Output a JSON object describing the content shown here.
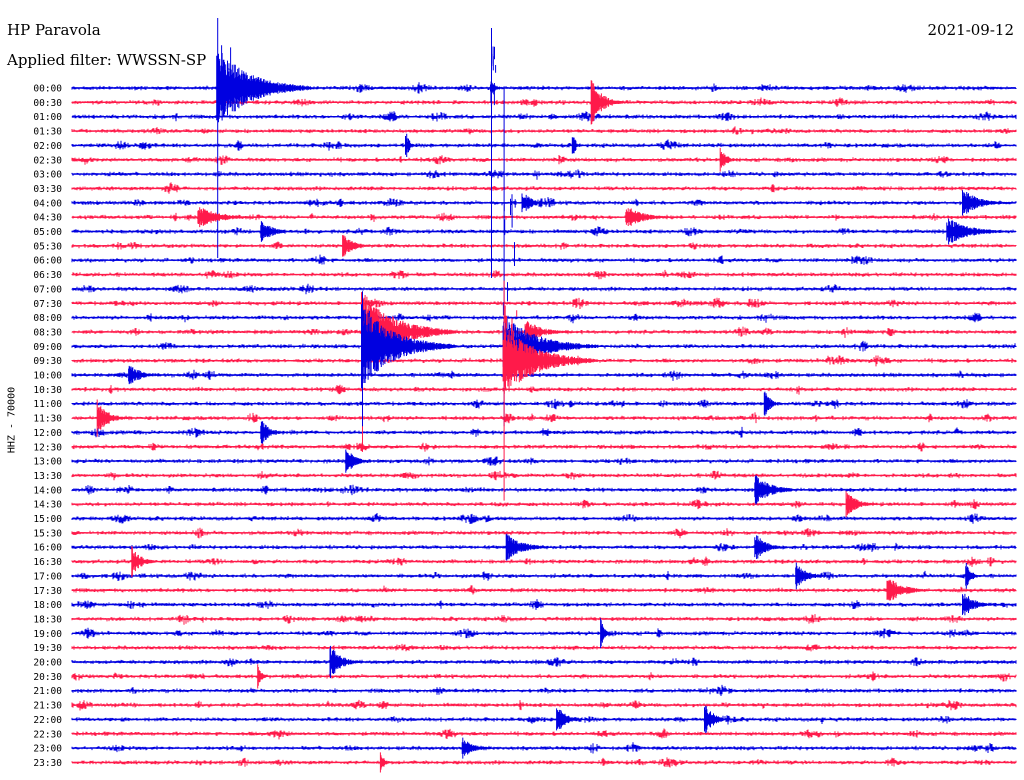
{
  "header": {
    "station": "HP Paravola",
    "date": "2021-09-12",
    "filter": "Applied filter: WWSSN-SP",
    "channel": "HHZ - 70000"
  },
  "chart_data": {
    "type": "line",
    "title": "HP Paravola",
    "subtitle": "Applied filter: WWSSN-SP",
    "ylabel": "HHZ - 70000",
    "row_labels": [
      "00:00",
      "00:30",
      "01:00",
      "01:30",
      "02:00",
      "02:30",
      "03:00",
      "03:30",
      "04:00",
      "04:30",
      "05:00",
      "05:30",
      "06:00",
      "06:30",
      "07:00",
      "07:30",
      "08:00",
      "08:30",
      "09:00",
      "09:30",
      "10:00",
      "10:30",
      "11:00",
      "11:30",
      "12:00",
      "12:30",
      "13:00",
      "13:30",
      "14:00",
      "14:30",
      "15:00",
      "15:30",
      "16:00",
      "16:30",
      "17:00",
      "17:30",
      "18:00",
      "18:30",
      "19:00",
      "19:30",
      "20:00",
      "20:30",
      "21:00",
      "21:30",
      "22:00",
      "22:30",
      "23:00",
      "23:30"
    ],
    "row_minutes": 30,
    "colors": [
      "#0000e0",
      "#ff1a4a"
    ],
    "events": [
      {
        "row": 0,
        "minute": 4.6,
        "amp": 4.0,
        "decay": 3.0,
        "above": 70,
        "below": 170
      },
      {
        "row": 0,
        "minute": 13.3,
        "amp": 0.2,
        "decay": 0.5,
        "above": 60,
        "below": 190
      },
      {
        "row": 1,
        "minute": 16.5,
        "amp": 2.0,
        "decay": 1.0
      },
      {
        "row": 4,
        "minute": 10.6,
        "amp": 1.3,
        "decay": 0.3
      },
      {
        "row": 4,
        "minute": 15.9,
        "amp": 1.0,
        "decay": 0.3
      },
      {
        "row": 5,
        "minute": 20.6,
        "amp": 1.0,
        "decay": 0.5
      },
      {
        "row": 8,
        "minute": 14.3,
        "amp": 0.8,
        "decay": 0.8
      },
      {
        "row": 8,
        "minute": 28.3,
        "amp": 0.9,
        "decay": 1.5
      },
      {
        "row": 9,
        "minute": 4.0,
        "amp": 0.6,
        "decay": 2.0
      },
      {
        "row": 9,
        "minute": 17.6,
        "amp": 0.7,
        "decay": 1.5
      },
      {
        "row": 10,
        "minute": 6.0,
        "amp": 0.8,
        "decay": 1.0
      },
      {
        "row": 10,
        "minute": 27.8,
        "amp": 1.0,
        "decay": 2.0
      },
      {
        "row": 11,
        "minute": 8.6,
        "amp": 0.7,
        "decay": 1.0
      },
      {
        "row": 17,
        "minute": 14.4,
        "amp": 0.8,
        "decay": 1.5
      },
      {
        "row": 17,
        "minute": 9.2,
        "amp": 4.0,
        "decay": 3.0,
        "above": 30,
        "below": 120
      },
      {
        "row": 18,
        "minute": 9.2,
        "amp": 4.0,
        "decay": 3.0,
        "above": 55,
        "below": 80
      },
      {
        "row": 18,
        "minute": 13.7,
        "amp": 3.0,
        "decay": 3.0,
        "above": 260,
        "below": 80
      },
      {
        "row": 19,
        "minute": 13.7,
        "amp": 3.5,
        "decay": 3.0,
        "above": 80,
        "below": 140
      },
      {
        "row": 20,
        "minute": 1.8,
        "amp": 0.8,
        "decay": 1.0
      },
      {
        "row": 22,
        "minute": 22.0,
        "amp": 1.2,
        "decay": 0.5
      },
      {
        "row": 23,
        "minute": 0.8,
        "amp": 1.4,
        "decay": 1.0
      },
      {
        "row": 24,
        "minute": 6.0,
        "amp": 0.9,
        "decay": 0.8
      },
      {
        "row": 26,
        "minute": 8.7,
        "amp": 1.0,
        "decay": 0.8
      },
      {
        "row": 28,
        "minute": 21.7,
        "amp": 1.1,
        "decay": 1.5
      },
      {
        "row": 29,
        "minute": 24.6,
        "amp": 0.8,
        "decay": 1.0
      },
      {
        "row": 32,
        "minute": 13.8,
        "amp": 0.9,
        "decay": 1.5
      },
      {
        "row": 32,
        "minute": 21.7,
        "amp": 1.0,
        "decay": 1.0
      },
      {
        "row": 33,
        "minute": 1.9,
        "amp": 1.2,
        "decay": 0.8
      },
      {
        "row": 34,
        "minute": 23.0,
        "amp": 0.9,
        "decay": 1.0
      },
      {
        "row": 34,
        "minute": 28.4,
        "amp": 1.0,
        "decay": 0.5
      },
      {
        "row": 35,
        "minute": 25.9,
        "amp": 0.9,
        "decay": 1.5
      },
      {
        "row": 36,
        "minute": 28.3,
        "amp": 1.0,
        "decay": 1.0
      },
      {
        "row": 38,
        "minute": 16.8,
        "amp": 1.2,
        "decay": 0.3
      },
      {
        "row": 40,
        "minute": 8.2,
        "amp": 1.3,
        "decay": 1.0
      },
      {
        "row": 41,
        "minute": 5.9,
        "amp": 1.0,
        "decay": 0.3
      },
      {
        "row": 44,
        "minute": 15.4,
        "amp": 1.1,
        "decay": 0.8
      },
      {
        "row": 44,
        "minute": 20.1,
        "amp": 1.3,
        "decay": 0.8
      },
      {
        "row": 46,
        "minute": 12.4,
        "amp": 0.6,
        "decay": 1.0
      },
      {
        "row": 47,
        "minute": 9.8,
        "amp": 0.9,
        "decay": 0.3
      }
    ]
  }
}
